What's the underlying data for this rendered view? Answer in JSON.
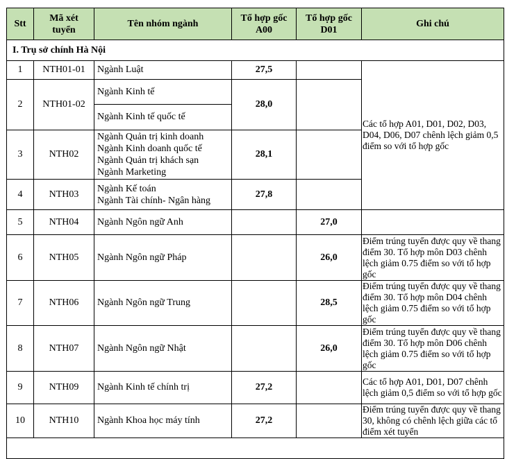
{
  "header": {
    "stt": "Stt",
    "code_line1": "Mã xét",
    "code_line2": "tuyển",
    "name": "Tên nhóm ngành",
    "a00_line1": "Tổ hợp gốc",
    "a00_line2": "A00",
    "d01_line1": "Tổ hợp gốc",
    "d01_line2": "D01",
    "note": "Ghi chú"
  },
  "section": "I.  Trụ sở chính Hà Nội",
  "rows": [
    {
      "stt": "1",
      "code": "NTH01-01",
      "names": [
        "Ngành Luật"
      ],
      "a00": "27,5",
      "d01": ""
    },
    {
      "stt": "2",
      "code": "NTH01-02",
      "names": [
        "Ngành Kinh tế",
        "Ngành Kinh tế quốc tế"
      ],
      "a00": "28,0",
      "d01": ""
    },
    {
      "stt": "3",
      "code": "NTH02",
      "names": [
        "Ngành Quản trị kinh doanh",
        "Ngành Kinh doanh quốc tế",
        "Ngành Quản trị khách sạn",
        "Ngành Marketing"
      ],
      "a00": "28,1",
      "d01": ""
    },
    {
      "stt": "4",
      "code": "NTH03",
      "names": [
        "Ngành Kế toán",
        "Ngành Tài chính- Ngân hàng"
      ],
      "a00": "27,8",
      "d01": ""
    },
    {
      "stt": "5",
      "code": "NTH04",
      "names": [
        "Ngành Ngôn ngữ Anh"
      ],
      "a00": "",
      "d01": "27,0",
      "note": ""
    },
    {
      "stt": "6",
      "code": "NTH05",
      "names": [
        "Ngành Ngôn ngữ Pháp"
      ],
      "a00": "",
      "d01": "26,0",
      "note": "Điểm trúng tuyển được quy về thang điểm 30. Tổ hợp môn D03 chênh lệch giảm 0.75 điểm so với tổ hợp gốc"
    },
    {
      "stt": "7",
      "code": "NTH06",
      "names": [
        "Ngành Ngôn ngữ Trung"
      ],
      "a00": "",
      "d01": "28,5",
      "note": "Điểm trúng tuyển được quy về thang điểm 30. Tổ  hợp môn D04 chênh lệch giảm 0.75 điểm so với tổ hợp gốc"
    },
    {
      "stt": "8",
      "code": "NTH07",
      "names": [
        "Ngành Ngôn ngữ Nhật"
      ],
      "a00": "",
      "d01": "26,0",
      "note": "Điểm trúng tuyển được quy về thang điểm 30. Tổ hợp môn D06 chênh lệch giảm 0.75 điểm so với tổ hợp gốc"
    },
    {
      "stt": "9",
      "code": "NTH09",
      "names": [
        "Ngành Kinh tế chính trị"
      ],
      "a00": "27,2",
      "d01": "",
      "note": "Các tổ hợp A01, D01, D07 chênh lệch giảm 0,5 điểm so với tổ hợp gốc"
    },
    {
      "stt": "10",
      "code": "NTH10",
      "names": [
        "Ngành Khoa học máy tính"
      ],
      "a00": "27,2",
      "d01": "",
      "note": "Điểm trúng tuyển được quy về thang 30, không có chênh lệch giữa các tổ điểm xét tuyển"
    }
  ],
  "shared_note_rows_1_4": "Các tổ hợp A01, D01, D02, D03, D04, D06, D07 chênh lệch giảm 0,5 điểm so với tổ hợp gốc",
  "colors": {
    "header_bg": "#c5e0b3",
    "border": "#000000"
  }
}
